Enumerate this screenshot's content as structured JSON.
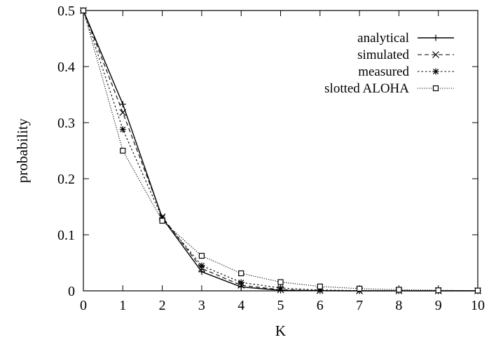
{
  "chart_data": {
    "type": "line",
    "title": "",
    "xlabel": "K",
    "ylabel": "probability",
    "xlim": [
      0,
      10
    ],
    "ylim": [
      0,
      0.5
    ],
    "x_ticks": [
      "0",
      "1",
      "2",
      "3",
      "4",
      "5",
      "6",
      "7",
      "8",
      "9",
      "10"
    ],
    "y_ticks": [
      "0",
      "0.1",
      "0.2",
      "0.3",
      "0.4",
      "0.5"
    ],
    "grid": false,
    "legend_position": "top-right",
    "x": [
      0,
      1,
      2,
      3,
      4,
      5,
      6,
      7,
      8,
      9,
      10
    ],
    "series": [
      {
        "name": "analytical",
        "marker": "plus",
        "line_style": "solid",
        "values": [
          0.5,
          0.333,
          0.13,
          0.034,
          0.007,
          0.001,
          0.0002,
          0.0,
          0.0,
          0.0,
          0.0
        ]
      },
      {
        "name": "simulated",
        "marker": "x",
        "line_style": "dashed",
        "values": [
          0.5,
          0.318,
          0.132,
          0.04,
          0.01,
          0.002,
          0.0005,
          0.0001,
          0.0,
          0.0,
          0.0
        ]
      },
      {
        "name": "measured",
        "marker": "star",
        "line_style": "dotted",
        "values": [
          0.5,
          0.288,
          0.13,
          0.045,
          0.015,
          0.005,
          0.0015,
          0.0004,
          0.0001,
          0.0,
          0.0
        ]
      },
      {
        "name": "slotted ALOHA",
        "marker": "square",
        "line_style": "fine-dotted",
        "values": [
          0.5,
          0.25,
          0.125,
          0.0625,
          0.03125,
          0.015625,
          0.0078,
          0.0039,
          0.002,
          0.001,
          0.0005
        ]
      }
    ]
  }
}
